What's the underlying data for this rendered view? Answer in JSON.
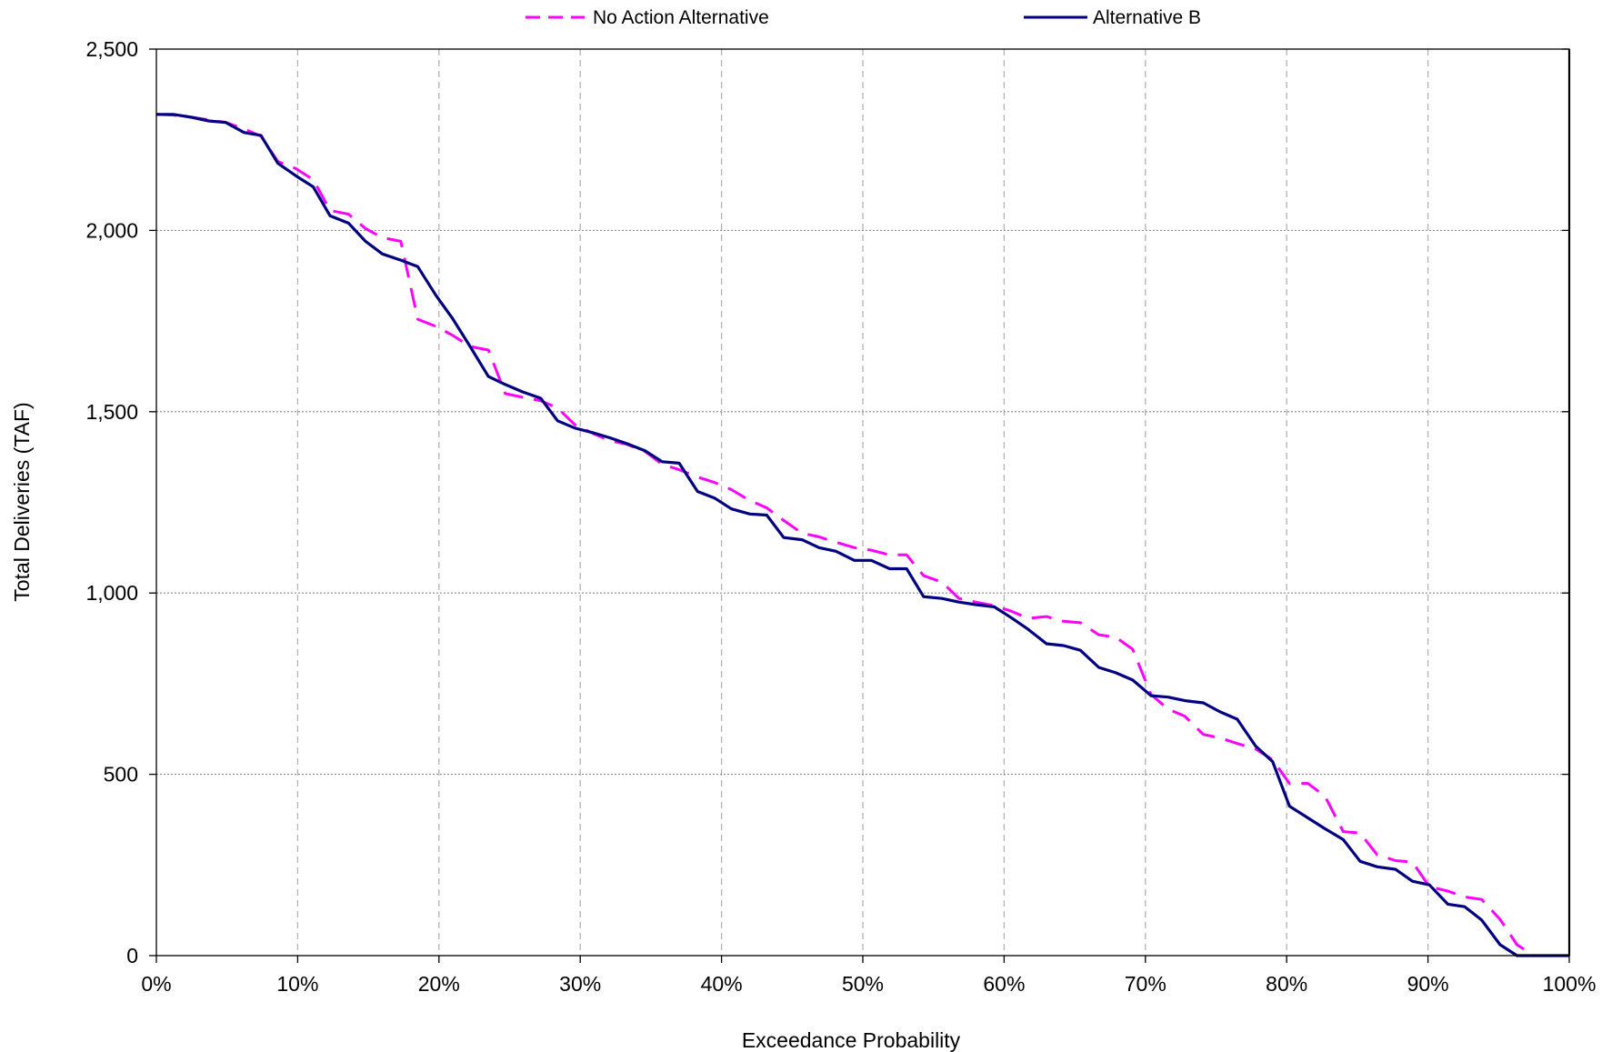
{
  "chart_data": {
    "type": "line",
    "title": "",
    "xlabel": "Exceedance Probability",
    "ylabel": "Total Deliveries (TAF)",
    "xlim": [
      0,
      100
    ],
    "ylim": [
      0,
      2500
    ],
    "x_ticks": [
      "0%",
      "10%",
      "20%",
      "30%",
      "40%",
      "50%",
      "60%",
      "70%",
      "80%",
      "90%",
      "100%"
    ],
    "y_ticks": [
      "0",
      "500",
      "1,000",
      "1,500",
      "2,000",
      "2,500"
    ],
    "x_tick_values": [
      0,
      10,
      20,
      30,
      40,
      50,
      60,
      70,
      80,
      90,
      100
    ],
    "y_tick_values": [
      0,
      500,
      1000,
      1500,
      2000,
      2500
    ],
    "grid": {
      "vertical": true,
      "horizontal": true
    },
    "legend": {
      "position": "top"
    },
    "series": [
      {
        "name": "No Action Alternative",
        "color": "#ff00ff",
        "dash": true,
        "points": [
          [
            0,
            2320
          ],
          [
            1.2,
            2318
          ],
          [
            2.5,
            2312
          ],
          [
            3.7,
            2305
          ],
          [
            4.9,
            2298
          ],
          [
            6.2,
            2280
          ],
          [
            7.4,
            2260
          ],
          [
            8.6,
            2190
          ],
          [
            9.9,
            2170
          ],
          [
            11.1,
            2140
          ],
          [
            12.3,
            2055
          ],
          [
            13.6,
            2045
          ],
          [
            14.8,
            2005
          ],
          [
            16.0,
            1980
          ],
          [
            17.3,
            1970
          ],
          [
            18.5,
            1755
          ],
          [
            19.8,
            1735
          ],
          [
            21.0,
            1710
          ],
          [
            22.2,
            1680
          ],
          [
            23.5,
            1670
          ],
          [
            24.7,
            1550
          ],
          [
            25.9,
            1540
          ],
          [
            27.2,
            1530
          ],
          [
            28.4,
            1510
          ],
          [
            29.6,
            1465
          ],
          [
            30.9,
            1440
          ],
          [
            32.1,
            1420
          ],
          [
            33.3,
            1410
          ],
          [
            34.6,
            1390
          ],
          [
            35.8,
            1355
          ],
          [
            37.0,
            1340
          ],
          [
            38.3,
            1320
          ],
          [
            39.5,
            1305
          ],
          [
            40.7,
            1285
          ],
          [
            42.0,
            1255
          ],
          [
            43.2,
            1235
          ],
          [
            44.4,
            1200
          ],
          [
            45.7,
            1165
          ],
          [
            46.9,
            1155
          ],
          [
            48.1,
            1140
          ],
          [
            49.4,
            1125
          ],
          [
            50.6,
            1118
          ],
          [
            51.9,
            1105
          ],
          [
            53.1,
            1105
          ],
          [
            54.3,
            1048
          ],
          [
            55.6,
            1030
          ],
          [
            56.8,
            985
          ],
          [
            58.0,
            975
          ],
          [
            59.3,
            965
          ],
          [
            60.5,
            950
          ],
          [
            61.7,
            930
          ],
          [
            63.0,
            935
          ],
          [
            64.2,
            922
          ],
          [
            65.4,
            918
          ],
          [
            66.7,
            885
          ],
          [
            67.9,
            878
          ],
          [
            69.1,
            845
          ],
          [
            70.4,
            720
          ],
          [
            71.6,
            680
          ],
          [
            72.8,
            660
          ],
          [
            74.1,
            610
          ],
          [
            75.3,
            600
          ],
          [
            76.5,
            585
          ],
          [
            77.8,
            570
          ],
          [
            79.0,
            540
          ],
          [
            80.2,
            475
          ],
          [
            81.5,
            475
          ],
          [
            82.7,
            440
          ],
          [
            84.0,
            342
          ],
          [
            85.2,
            338
          ],
          [
            86.4,
            278
          ],
          [
            87.7,
            262
          ],
          [
            88.9,
            258
          ],
          [
            90.1,
            190
          ],
          [
            91.4,
            178
          ],
          [
            92.6,
            162
          ],
          [
            93.8,
            155
          ],
          [
            95.1,
            100
          ],
          [
            96.3,
            30
          ],
          [
            97.5,
            0
          ],
          [
            98.8,
            0
          ],
          [
            100,
            0
          ]
        ]
      },
      {
        "name": "Alternative B",
        "color": "#000080",
        "dash": false,
        "points": [
          [
            0,
            2320
          ],
          [
            1.2,
            2320
          ],
          [
            2.5,
            2312
          ],
          [
            3.7,
            2302
          ],
          [
            4.9,
            2298
          ],
          [
            6.2,
            2270
          ],
          [
            7.4,
            2262
          ],
          [
            8.6,
            2185
          ],
          [
            9.9,
            2150
          ],
          [
            11.1,
            2120
          ],
          [
            12.3,
            2040
          ],
          [
            13.6,
            2020
          ],
          [
            14.8,
            1970
          ],
          [
            16.0,
            1935
          ],
          [
            17.3,
            1918
          ],
          [
            18.5,
            1900
          ],
          [
            19.8,
            1820
          ],
          [
            21.0,
            1755
          ],
          [
            22.2,
            1680
          ],
          [
            23.5,
            1597
          ],
          [
            24.7,
            1575
          ],
          [
            25.9,
            1555
          ],
          [
            27.2,
            1537
          ],
          [
            28.4,
            1475
          ],
          [
            29.6,
            1455
          ],
          [
            30.9,
            1442
          ],
          [
            32.1,
            1428
          ],
          [
            33.3,
            1412
          ],
          [
            34.6,
            1392
          ],
          [
            35.8,
            1362
          ],
          [
            37.0,
            1358
          ],
          [
            38.3,
            1280
          ],
          [
            39.5,
            1262
          ],
          [
            40.7,
            1232
          ],
          [
            42.0,
            1218
          ],
          [
            43.2,
            1215
          ],
          [
            44.4,
            1153
          ],
          [
            45.7,
            1147
          ],
          [
            46.9,
            1125
          ],
          [
            48.1,
            1115
          ],
          [
            49.4,
            1090
          ],
          [
            50.6,
            1090
          ],
          [
            51.9,
            1067
          ],
          [
            53.1,
            1067
          ],
          [
            54.3,
            990
          ],
          [
            55.6,
            985
          ],
          [
            56.8,
            975
          ],
          [
            58.0,
            968
          ],
          [
            59.3,
            962
          ],
          [
            60.5,
            932
          ],
          [
            61.7,
            900
          ],
          [
            63.0,
            860
          ],
          [
            64.2,
            855
          ],
          [
            65.4,
            842
          ],
          [
            66.7,
            795
          ],
          [
            67.9,
            780
          ],
          [
            69.1,
            760
          ],
          [
            70.4,
            717
          ],
          [
            71.6,
            713
          ],
          [
            72.8,
            703
          ],
          [
            74.1,
            697
          ],
          [
            75.3,
            672
          ],
          [
            76.5,
            652
          ],
          [
            77.8,
            578
          ],
          [
            79.0,
            535
          ],
          [
            80.2,
            412
          ],
          [
            81.5,
            380
          ],
          [
            82.7,
            350
          ],
          [
            84.0,
            320
          ],
          [
            85.2,
            260
          ],
          [
            86.4,
            245
          ],
          [
            87.7,
            238
          ],
          [
            88.9,
            205
          ],
          [
            90.1,
            195
          ],
          [
            91.4,
            142
          ],
          [
            92.6,
            135
          ],
          [
            93.8,
            98
          ],
          [
            95.1,
            30
          ],
          [
            96.3,
            0
          ],
          [
            97.5,
            0
          ],
          [
            98.8,
            0
          ],
          [
            100,
            0
          ]
        ]
      }
    ]
  }
}
